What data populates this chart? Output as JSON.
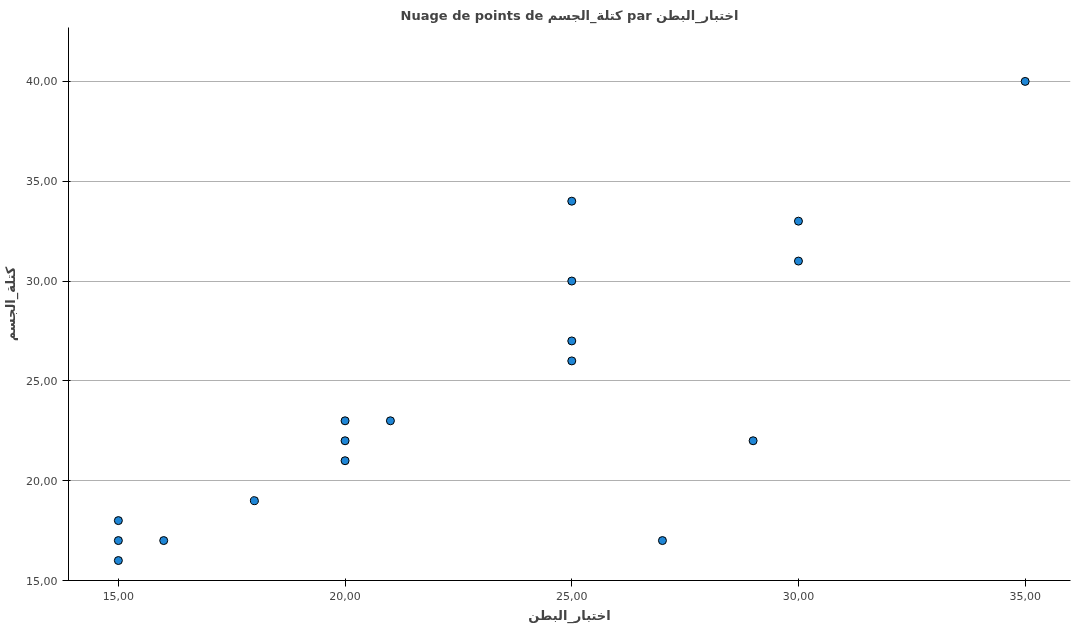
{
  "chart_data": {
    "type": "scatter",
    "title": "Nuage de points de كتلة_الجسم par اختبار_البطن",
    "xlabel": "اختبار_البطن",
    "ylabel": "كتلة_الجسم",
    "x": [
      15,
      15,
      15,
      16,
      18,
      20,
      20,
      20,
      21,
      25,
      25,
      25,
      25,
      27,
      29,
      30,
      30,
      35
    ],
    "series": [
      {
        "color": "#1f86d6",
        "values": [
          16,
          17,
          18,
          17,
          19,
          21,
          22,
          23,
          23,
          26,
          27,
          30,
          34,
          17,
          22,
          31,
          33,
          40
        ]
      }
    ],
    "xlim": [
      13.9,
      36
    ],
    "ylim": [
      15,
      42.7
    ],
    "xticks": [
      {
        "value": 15,
        "label": "15,00"
      },
      {
        "value": 20,
        "label": "20,00"
      },
      {
        "value": 25,
        "label": "25,00"
      },
      {
        "value": 30,
        "label": "30,00"
      },
      {
        "value": 35,
        "label": "35,00"
      }
    ],
    "yticks": [
      {
        "value": 15,
        "label": "15,00"
      },
      {
        "value": 20,
        "label": "20,00"
      },
      {
        "value": 25,
        "label": "25,00"
      },
      {
        "value": 30,
        "label": "30,00"
      },
      {
        "value": 35,
        "label": "35,00"
      },
      {
        "value": 40,
        "label": "40,00"
      }
    ],
    "grid": "y",
    "marker": "circle"
  }
}
